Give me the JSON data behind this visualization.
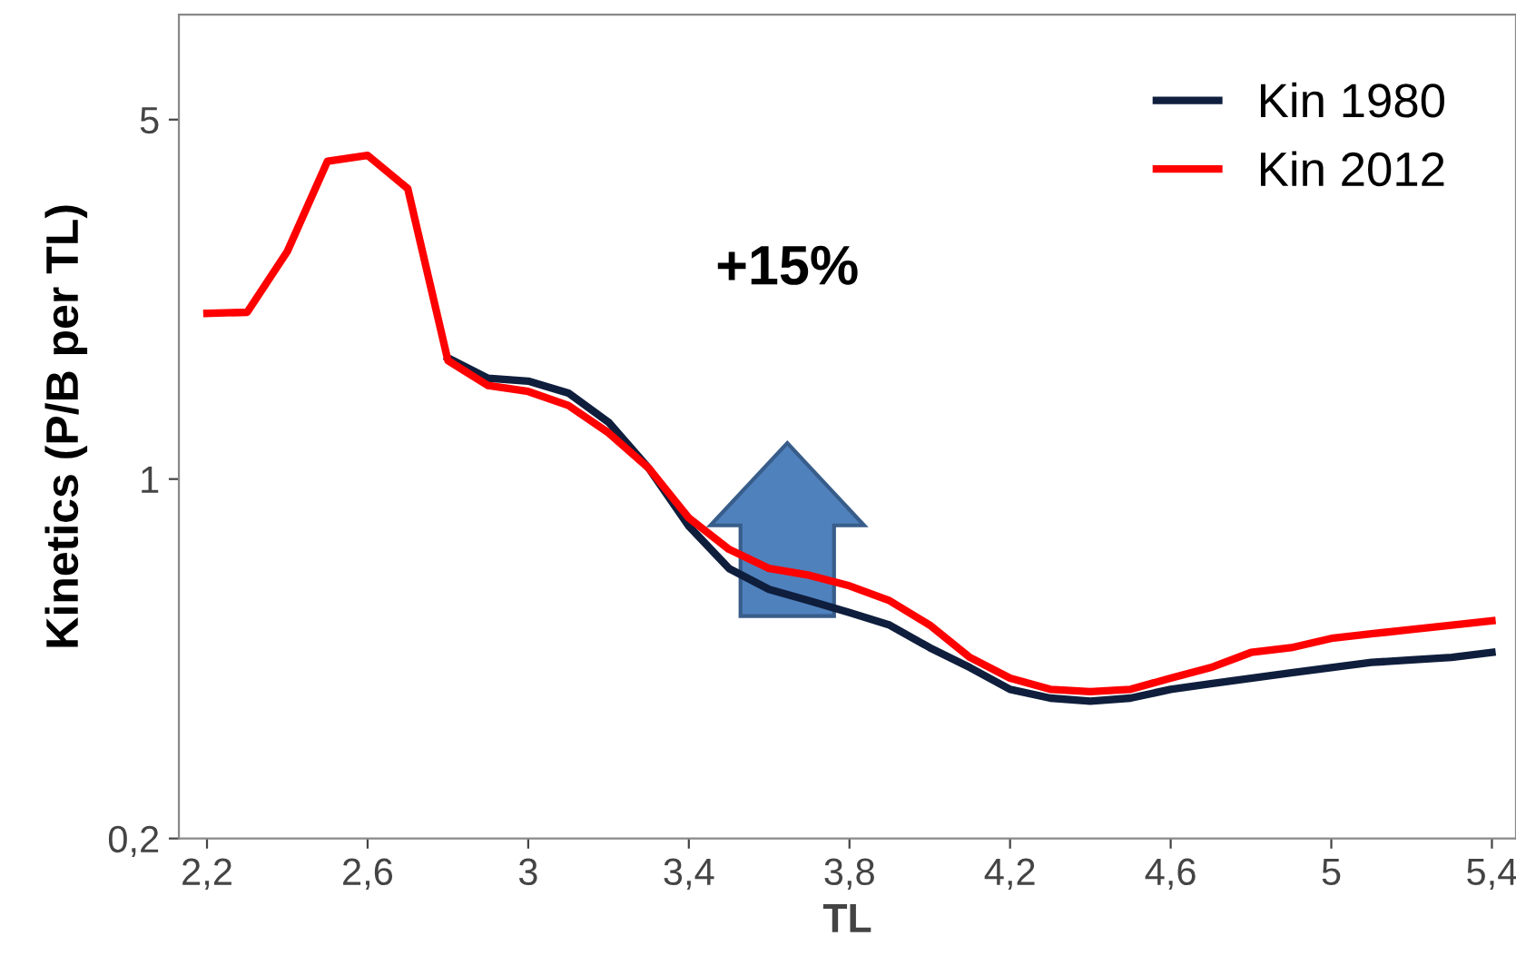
{
  "chart_data": {
    "type": "line",
    "xlabel": "TL",
    "ylabel": "Kinetics (P/B per TL)",
    "x": [
      2.2,
      2.3,
      2.4,
      2.5,
      2.6,
      2.7,
      2.8,
      2.9,
      3.0,
      3.1,
      3.2,
      3.3,
      3.4,
      3.5,
      3.6,
      3.7,
      3.8,
      3.9,
      4.0,
      4.1,
      4.2,
      4.3,
      4.4,
      4.5,
      4.6,
      4.7,
      4.8,
      4.9,
      5.0,
      5.1,
      5.2,
      5.3,
      5.4
    ],
    "series": [
      {
        "name": "Kin 1980",
        "color": "#0f1e3c",
        "values": [
          null,
          null,
          null,
          null,
          null,
          null,
          1.72,
          1.57,
          1.55,
          1.47,
          1.29,
          1.05,
          0.81,
          0.67,
          0.61,
          0.58,
          0.55,
          0.52,
          0.47,
          0.43,
          0.39,
          0.375,
          0.37,
          0.375,
          0.39,
          0.4,
          0.41,
          0.42,
          0.43,
          0.44,
          0.445,
          0.45,
          0.46
        ]
      },
      {
        "name": "Kin 2012",
        "color": "#ff0000",
        "values": [
          2.1,
          2.11,
          2.77,
          4.15,
          4.26,
          3.67,
          1.7,
          1.52,
          1.48,
          1.39,
          1.23,
          1.05,
          0.84,
          0.73,
          0.67,
          0.65,
          0.62,
          0.58,
          0.52,
          0.45,
          0.41,
          0.39,
          0.386,
          0.39,
          0.41,
          0.43,
          0.46,
          0.47,
          0.49,
          0.5,
          0.51,
          0.52,
          0.53
        ]
      }
    ],
    "log": "y",
    "xlim": [
      2.13,
      5.46
    ],
    "ylim": [
      0.2,
      8
    ],
    "xticks": [
      {
        "value": 2.2,
        "label": "2,2"
      },
      {
        "value": 2.6,
        "label": "2,6"
      },
      3,
      {
        "value": 3.4,
        "label": "3,4"
      },
      {
        "value": 3.8,
        "label": "3,8"
      },
      {
        "value": 4.2,
        "label": "4,2"
      },
      {
        "value": 4.6,
        "label": "4,6"
      },
      5,
      {
        "value": 5.4,
        "label": "5,4"
      }
    ],
    "yticks": [
      {
        "value": 0.2,
        "label": "0,2"
      },
      1,
      5
    ],
    "annotations": [
      "+15%"
    ],
    "grid": false,
    "legend": "top right"
  }
}
